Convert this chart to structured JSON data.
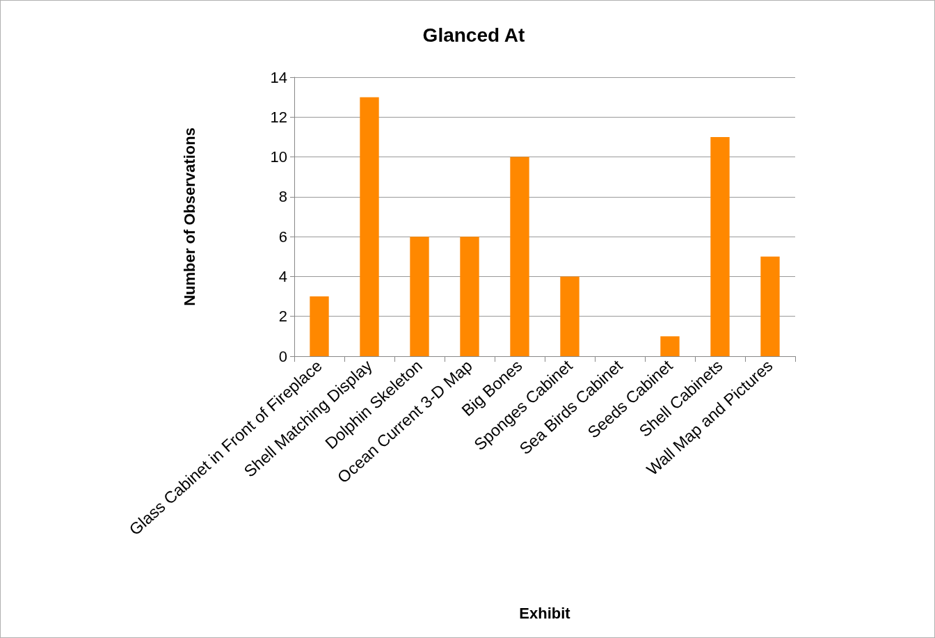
{
  "chart_data": {
    "type": "bar",
    "title": "Glanced At",
    "xlabel": "Exhibit",
    "ylabel": "Number of Observations",
    "categories": [
      "Glass Cabinet in Front of Fireplace",
      "Shell Matching Display",
      "Dolphin Skeleton",
      "Ocean Current 3-D Map",
      "Big Bones",
      "Sponges Cabinet",
      "Sea Birds Cabinet",
      "Seeds Cabinet",
      "Shell Cabinets",
      "Wall Map and Pictures"
    ],
    "values": [
      3,
      13,
      6,
      6,
      10,
      4,
      0,
      1,
      11,
      5
    ],
    "color": "#ff8800",
    "ylim": [
      0,
      14
    ],
    "yticks": [
      0,
      2,
      4,
      6,
      8,
      10,
      12,
      14
    ],
    "grid": "y"
  }
}
